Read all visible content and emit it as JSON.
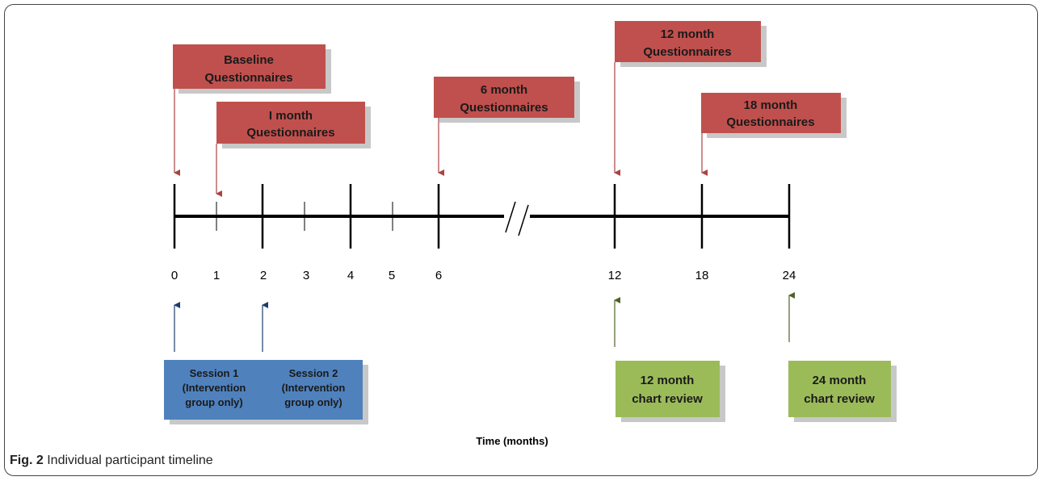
{
  "figure": {
    "caption_label": "Fig. 2",
    "caption_text": "Individual participant timeline",
    "axis_label": "Time (months)"
  },
  "timeline": {
    "ticks": [
      "0",
      "1",
      "2",
      "3",
      "4",
      "5",
      "6",
      "12",
      "18",
      "24"
    ],
    "break_marker": "//"
  },
  "questionnaires": [
    {
      "line1": "Baseline",
      "line2": "Questionnaires",
      "month": "0"
    },
    {
      "line1": "I month",
      "line2": "Questionnaires",
      "month": "1"
    },
    {
      "line1": "6 month",
      "line2": "Questionnaires",
      "month": "6"
    },
    {
      "line1": "12 month",
      "line2": "Questionnaires",
      "month": "12"
    },
    {
      "line1": "18 month",
      "line2": "Questionnaires",
      "month": "18"
    }
  ],
  "sessions": [
    {
      "line1": "Session 1",
      "line2": "(Intervention",
      "line3": "group only)",
      "month": "0"
    },
    {
      "line1": "Session 2",
      "line2": "(Intervention",
      "line3": "group only)",
      "month": "2"
    }
  ],
  "chart_reviews": [
    {
      "line1": "12 month",
      "line2": "chart review",
      "month": "12"
    },
    {
      "line1": "24 month",
      "line2": "chart review",
      "month": "24"
    }
  ],
  "colors": {
    "questionnaire_fill": "#c0504d",
    "session_fill": "#4f81bd",
    "review_fill": "#9bbb59",
    "questionnaire_arrow": "#a94442",
    "session_arrow": "#1f3d6b",
    "review_arrow": "#4f6228",
    "shadow": "#c8c8c8"
  }
}
